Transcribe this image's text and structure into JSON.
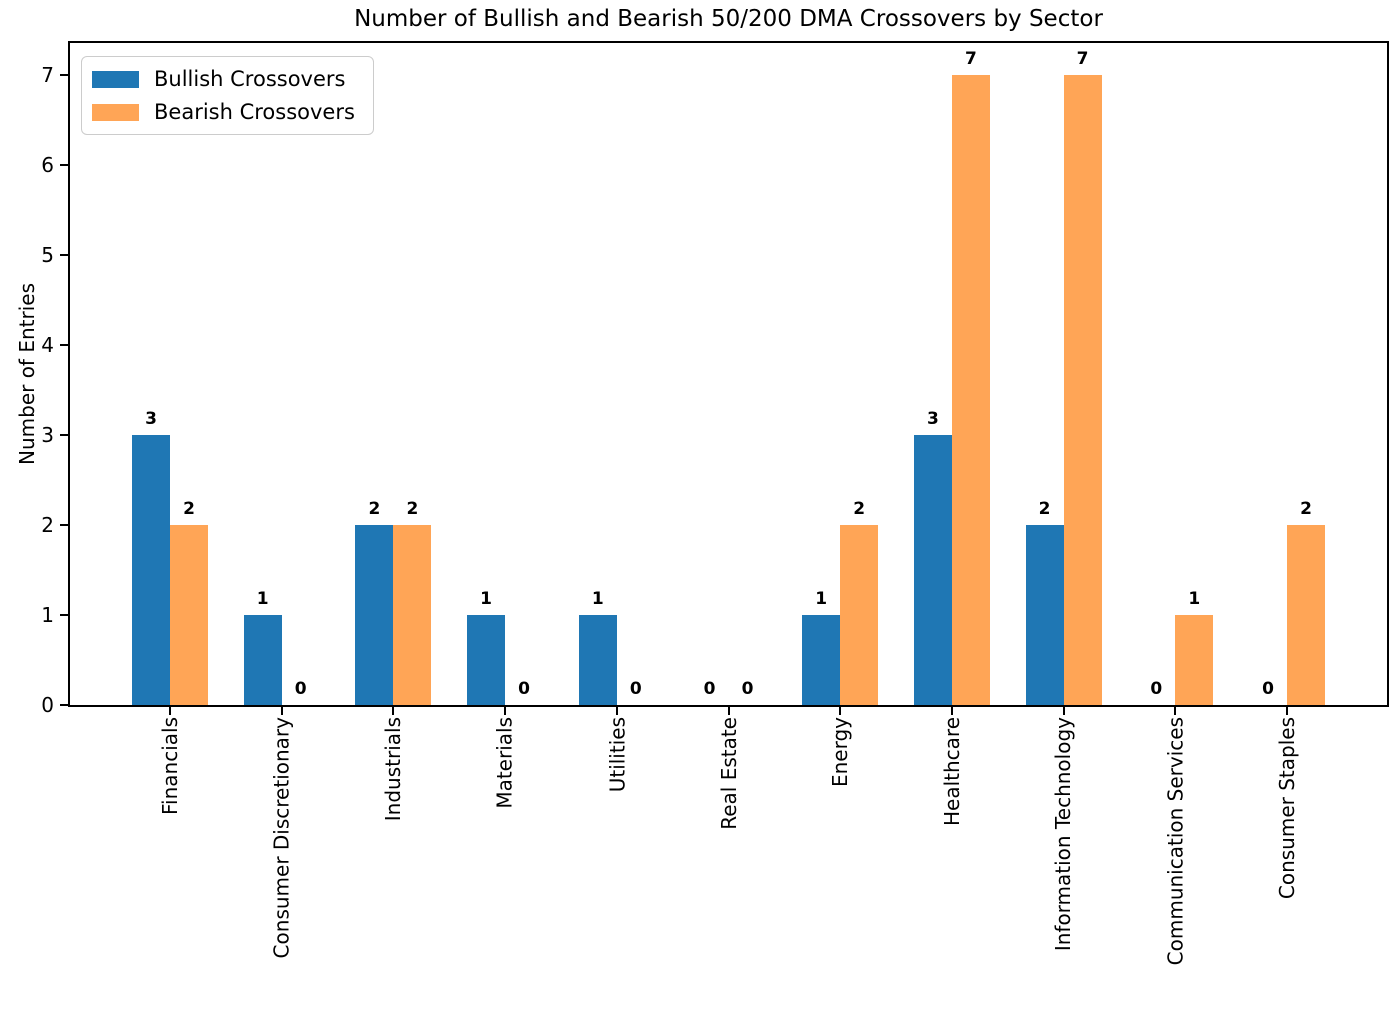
{
  "figure": {
    "background": "#ffffff"
  },
  "chart_data": {
    "type": "bar",
    "title": "Number of Bullish and Bearish 50/200 DMA Crossovers by Sector",
    "xlabel": "",
    "ylabel": "Number of Entries",
    "categories": [
      "Financials",
      "Consumer Discretionary",
      "Industrials",
      "Materials",
      "Utilities",
      "Real Estate",
      "Energy",
      "Healthcare",
      "Information Technology",
      "Communication Services",
      "Consumer Staples"
    ],
    "series": [
      {
        "name": "Bullish Crossovers",
        "color": "#1f77b4",
        "values": [
          3,
          1,
          2,
          1,
          1,
          0,
          1,
          3,
          2,
          0,
          0
        ]
      },
      {
        "name": "Bearish Crossovers",
        "color": "#ffa556",
        "values": [
          2,
          0,
          2,
          0,
          0,
          0,
          2,
          7,
          7,
          1,
          2
        ]
      }
    ],
    "y_ticks": [
      0,
      1,
      2,
      3,
      4,
      5,
      6,
      7
    ],
    "ylim": [
      0,
      7.35
    ],
    "grid": false,
    "bar_value_labels": true,
    "legend_position": "upper left"
  },
  "colors": {
    "axis": "#000000",
    "text": "#000000",
    "legend_border": "#cccccc",
    "background": "#ffffff"
  }
}
